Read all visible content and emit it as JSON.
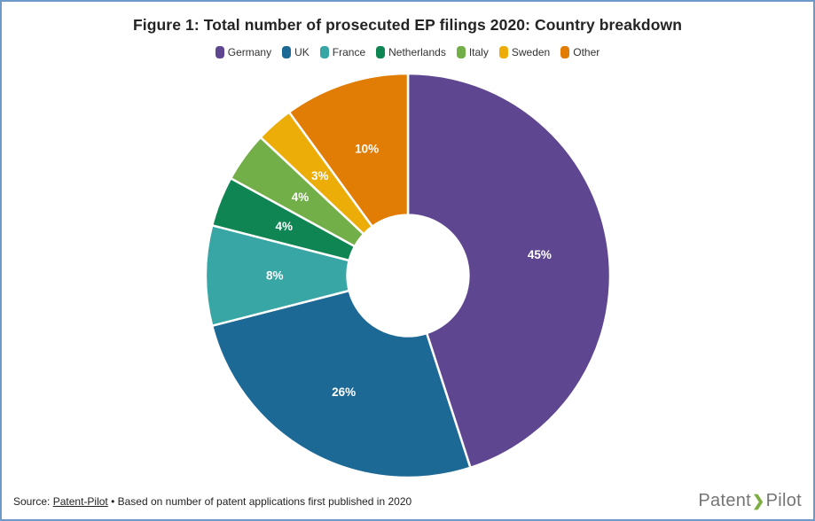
{
  "frame": {
    "border_color": "#6d9aca",
    "background_color": "#ffffff"
  },
  "title": "Figure 1: Total number of prosecuted EP filings 2020: Country breakdown",
  "chart_data": {
    "type": "pie",
    "subtype": "donut",
    "title": "Figure 1: Total number of prosecuted EP filings 2020: Country breakdown",
    "categories": [
      "Germany",
      "UK",
      "France",
      "Netherlands",
      "Italy",
      "Sweden",
      "Other"
    ],
    "values": [
      45,
      26,
      8,
      4,
      4,
      3,
      10
    ],
    "unit": "%",
    "slice_labels": [
      "45%",
      "26%",
      "8%",
      "4%",
      "4%",
      "3%",
      "10%"
    ],
    "colors": [
      "#5F4690",
      "#1D6996",
      "#38A6A5",
      "#0F8554",
      "#73AF48",
      "#EDAD08",
      "#E17C05"
    ],
    "slice_border_color": "#ffffff",
    "label_color": "#ffffff",
    "legend_position": "top",
    "start_angle_deg": 0,
    "direction": "clockwise",
    "inner_radius_ratio": 0.3
  },
  "footer": {
    "source_prefix": "Source: ",
    "source_link": "Patent-Pilot",
    "source_suffix": " • Based on number of patent applications first published in 2020",
    "logo": {
      "part1": "Patent",
      "chevron": "❯",
      "part2": "Pilot",
      "text_color": "#757575",
      "chevron_color": "#7CAE40"
    }
  }
}
